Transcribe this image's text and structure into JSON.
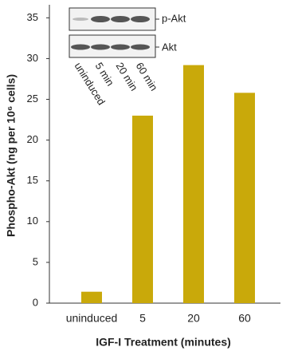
{
  "chart_data": {
    "type": "bar",
    "categories": [
      "uninduced",
      "5",
      "20",
      "60"
    ],
    "values": [
      1.4,
      23,
      29.2,
      25.8
    ],
    "color": "#c9a90a",
    "ylim": [
      0,
      36.5
    ],
    "yticks": [
      0,
      5,
      10,
      15,
      20,
      25,
      30,
      35
    ],
    "xlabel": "IGF-I Treatment (minutes)",
    "ylabel": "Phospho-Akt (ng per 10⁶ cells)"
  },
  "inset": {
    "band_labels": [
      "p-Akt",
      "Akt"
    ],
    "lane_labels": [
      "uninduced",
      "5 min",
      "20 min",
      "60 min"
    ]
  }
}
